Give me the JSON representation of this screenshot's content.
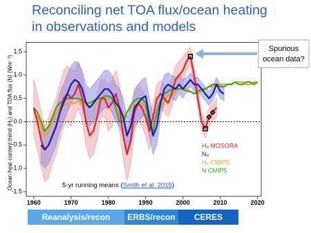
{
  "title_lines": [
    "Reconciling net TOA flux/ocean heating",
    "in observations and models"
  ],
  "chart_data": {
    "type": "line",
    "y_label": "Ocean heat content trend (Hₒ) and TOA flux (N) (Wm⁻²)",
    "x": [
      1960,
      1961,
      1962,
      1963,
      1964,
      1965,
      1966,
      1967,
      1968,
      1969,
      1970,
      1971,
      1972,
      1973,
      1974,
      1975,
      1976,
      1977,
      1978,
      1979,
      1980,
      1981,
      1982,
      1983,
      1984,
      1985,
      1986,
      1987,
      1988,
      1989,
      1990,
      1991,
      1992,
      1993,
      1994,
      1995,
      1996,
      1997,
      1998,
      1999,
      2000,
      2001,
      2002,
      2003,
      2004,
      2005,
      2006,
      2007,
      2008,
      2009,
      2010,
      2011,
      2012,
      2013,
      2014,
      2015,
      2016,
      2017,
      2018,
      2019,
      2020
    ],
    "xlim": [
      1958,
      2021
    ],
    "xticks": [
      1960,
      1970,
      1980,
      1990,
      2000,
      2010,
      2020
    ],
    "ylim": [
      -1.6,
      1.7
    ],
    "yticks": [
      -1.5,
      {
        "value": -1.0,
        "label": "-1.0"
      },
      -0.5,
      {
        "value": 0.0,
        "label": "0.0"
      },
      0.5,
      {
        "value": 1.0,
        "label": "1.0"
      },
      1.5
    ],
    "zero_line": true,
    "legend": "bottom-right",
    "series": [
      {
        "name": "Hₒ MOSORA",
        "color": "#e02424",
        "band_color": "#f3a5a5",
        "values": [
          0.3,
          0.0,
          -0.4,
          -0.6,
          -0.5,
          -0.3,
          -0.1,
          0.2,
          0.5,
          0.6,
          0.5,
          0.6,
          0.8,
          0.5,
          0.0,
          -0.3,
          -0.2,
          0.1,
          0.5,
          0.5,
          0.3,
          0.4,
          0.6,
          0.3,
          -0.3,
          -0.7,
          -0.4,
          0.2,
          0.4,
          0.3,
          0.1,
          -0.2,
          0.1,
          0.5,
          0.6,
          0.5,
          0.4,
          0.6,
          0.9,
          1.0,
          1.1,
          1.3,
          1.4,
          1.0,
          0.5,
          0.0,
          -0.15,
          0.1,
          0.2,
          0.3,
          null,
          null,
          null,
          null,
          null,
          null,
          null,
          null,
          null,
          null,
          null
        ],
        "upper": [
          0.9,
          0.6,
          0.2,
          -0.1,
          0.1,
          0.3,
          0.5,
          0.8,
          1.1,
          1.2,
          1.1,
          1.1,
          1.3,
          1.0,
          0.5,
          0.2,
          0.3,
          0.6,
          0.9,
          0.9,
          0.8,
          0.9,
          1.1,
          0.8,
          0.2,
          -0.2,
          0.1,
          0.6,
          0.8,
          0.7,
          0.5,
          0.2,
          0.4,
          0.8,
          0.9,
          0.8,
          0.7,
          0.9,
          1.2,
          1.3,
          1.4,
          1.5,
          1.6,
          1.2,
          0.7,
          0.2,
          0.05,
          0.3,
          0.4,
          0.5,
          null,
          null,
          null,
          null,
          null,
          null,
          null,
          null,
          null,
          null,
          null
        ],
        "lower": [
          -0.3,
          -0.6,
          -1.0,
          -1.3,
          -1.2,
          -0.9,
          -0.7,
          -0.4,
          -0.1,
          0.0,
          -0.1,
          0.1,
          0.3,
          0.0,
          -0.5,
          -0.8,
          -0.7,
          -0.4,
          0.1,
          0.1,
          -0.2,
          -0.1,
          0.1,
          -0.2,
          -0.8,
          -1.3,
          -0.9,
          -0.2,
          0.0,
          -0.1,
          -0.3,
          -0.6,
          -0.2,
          0.2,
          0.3,
          0.2,
          0.1,
          0.3,
          0.6,
          0.7,
          0.8,
          1.1,
          1.2,
          0.8,
          0.3,
          -0.2,
          -0.35,
          -0.1,
          0.0,
          0.1,
          null,
          null,
          null,
          null,
          null,
          null,
          null,
          null,
          null,
          null,
          null
        ]
      },
      {
        "name": "Nₒ",
        "color": "#1a1aa8",
        "band_color": "#8f8fe8",
        "values": [
          null,
          null,
          -0.5,
          -0.6,
          -0.5,
          -0.3,
          -0.1,
          0.2,
          0.4,
          0.6,
          0.8,
          0.9,
          0.85,
          0.7,
          0.4,
          0.3,
          0.4,
          0.5,
          0.6,
          0.7,
          0.7,
          0.6,
          0.4,
          0.3,
          0.1,
          -0.3,
          -0.1,
          0.3,
          0.4,
          0.5,
          0.55,
          0.1,
          -0.3,
          -0.1,
          0.4,
          0.7,
          0.8,
          0.75,
          0.7,
          0.8,
          0.7,
          0.8,
          0.9,
          0.8,
          0.8,
          0.7,
          0.6,
          0.5,
          0.6,
          0.8,
          0.65,
          0.6,
          null,
          null,
          null,
          null,
          null,
          null,
          null,
          null,
          null
        ],
        "upper": [
          null,
          null,
          -0.1,
          -0.2,
          -0.1,
          0.1,
          0.3,
          0.6,
          0.8,
          1.0,
          1.2,
          1.3,
          1.25,
          1.1,
          0.8,
          0.7,
          0.8,
          0.9,
          1.0,
          1.1,
          1.1,
          1.0,
          0.8,
          0.7,
          0.5,
          0.1,
          0.3,
          0.7,
          0.8,
          0.9,
          0.95,
          0.5,
          0.1,
          0.3,
          0.7,
          1.0,
          1.05,
          1.0,
          0.95,
          1.0,
          0.9,
          0.95,
          1.05,
          0.95,
          0.95,
          0.85,
          0.75,
          0.65,
          0.75,
          0.95,
          0.8,
          0.75,
          null,
          null,
          null,
          null,
          null,
          null,
          null,
          null,
          null
        ],
        "lower": [
          null,
          null,
          -0.9,
          -1.0,
          -0.9,
          -0.7,
          -0.5,
          -0.2,
          0.0,
          0.2,
          0.4,
          0.5,
          0.45,
          0.3,
          0.0,
          -0.1,
          0.0,
          0.1,
          0.2,
          0.3,
          0.3,
          0.2,
          0.0,
          -0.1,
          -0.3,
          -0.7,
          -0.5,
          -0.1,
          0.0,
          0.1,
          0.15,
          -0.3,
          -0.7,
          -0.5,
          0.1,
          0.4,
          0.55,
          0.5,
          0.45,
          0.6,
          0.5,
          0.65,
          0.75,
          0.65,
          0.65,
          0.55,
          0.45,
          0.35,
          0.45,
          0.65,
          0.5,
          0.45,
          null,
          null,
          null,
          null,
          null,
          null,
          null,
          null,
          null
        ]
      },
      {
        "name": "Hₒ CMIP5",
        "color": "#f0a020",
        "values": [
          0.2,
          0.1,
          -0.1,
          -0.3,
          -0.2,
          0.0,
          0.2,
          0.3,
          0.35,
          0.4,
          0.4,
          0.4,
          0.45,
          0.4,
          0.35,
          0.3,
          0.35,
          0.4,
          0.45,
          0.5,
          0.5,
          0.5,
          0.4,
          0.2,
          0.1,
          0.2,
          0.3,
          0.35,
          0.4,
          0.4,
          0.3,
          0.0,
          -0.1,
          0.1,
          0.3,
          0.45,
          0.55,
          0.6,
          0.65,
          0.7,
          0.7,
          0.7,
          0.65,
          0.6,
          0.6,
          0.65,
          0.7,
          0.75,
          0.75,
          0.8,
          0.8,
          0.8,
          0.8,
          0.8,
          0.85,
          0.85,
          0.85,
          0.8,
          0.8,
          0.85,
          0.85
        ]
      },
      {
        "name": "N CMIP5",
        "color": "#38a828",
        "values": [
          0.3,
          0.2,
          0.0,
          -0.2,
          -0.1,
          0.1,
          0.3,
          0.4,
          0.45,
          0.5,
          0.5,
          0.5,
          0.5,
          0.45,
          0.4,
          0.4,
          0.45,
          0.5,
          0.5,
          0.55,
          0.55,
          0.5,
          0.3,
          0.0,
          0.0,
          0.2,
          0.35,
          0.45,
          0.5,
          0.5,
          0.4,
          -0.1,
          -0.2,
          0.2,
          0.45,
          0.6,
          0.65,
          0.7,
          0.7,
          0.7,
          0.7,
          0.65,
          0.65,
          0.6,
          0.65,
          0.7,
          0.7,
          0.75,
          0.8,
          0.8,
          0.75,
          0.75,
          0.8,
          0.8,
          0.85,
          0.8,
          0.8,
          0.85,
          0.85,
          0.8,
          0.85
        ]
      }
    ],
    "markers": [
      {
        "x": 2002,
        "y": 1.4,
        "shape": "square"
      },
      {
        "x": 2006,
        "y": -0.15,
        "shape": "square"
      },
      {
        "x": 2007,
        "y": 0.1,
        "shape": "diamond"
      },
      {
        "x": 2008,
        "y": 0.2,
        "shape": "diamond"
      }
    ],
    "annotation": {
      "text": "5-yr running means (",
      "link": "Smith et al. 2015",
      "end": ")"
    },
    "callout": [
      "Spurious",
      "ocean data?"
    ]
  },
  "periods": [
    "Reanalysis/recon",
    "ERBS/recon",
    "CERES"
  ]
}
